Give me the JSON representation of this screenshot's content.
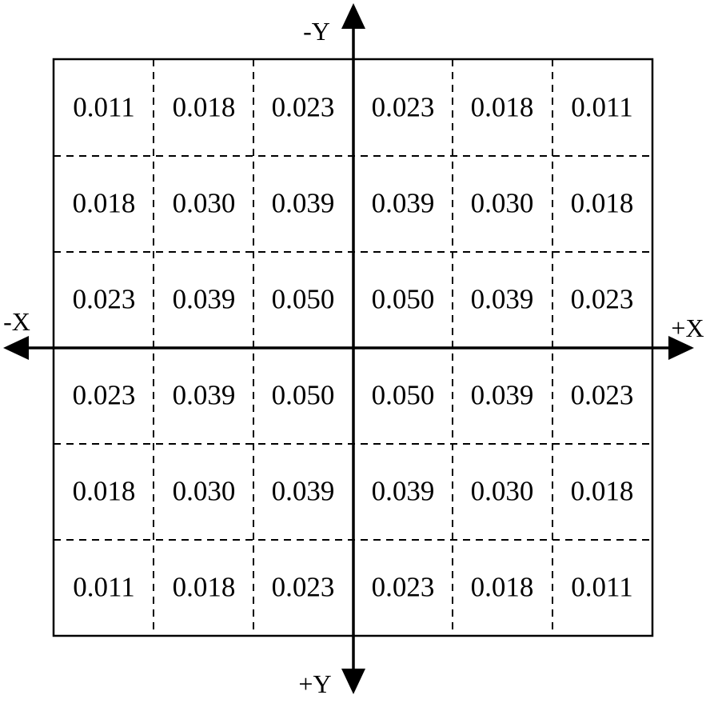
{
  "axes": {
    "x_negative": "-X",
    "x_positive": "+X",
    "y_negative": "-Y",
    "y_positive": "+Y"
  },
  "grid": {
    "rows": 6,
    "cols": 6,
    "values": [
      [
        "0.011",
        "0.018",
        "0.023",
        "0.023",
        "0.018",
        "0.011"
      ],
      [
        "0.018",
        "0.030",
        "0.039",
        "0.039",
        "0.030",
        "0.018"
      ],
      [
        "0.023",
        "0.039",
        "0.050",
        "0.050",
        "0.039",
        "0.023"
      ],
      [
        "0.023",
        "0.039",
        "0.050",
        "0.050",
        "0.039",
        "0.023"
      ],
      [
        "0.018",
        "0.030",
        "0.039",
        "0.039",
        "0.030",
        "0.018"
      ],
      [
        "0.011",
        "0.018",
        "0.023",
        "0.023",
        "0.018",
        "0.011"
      ]
    ]
  },
  "colors": {
    "line": "#000000",
    "background": "#ffffff"
  }
}
